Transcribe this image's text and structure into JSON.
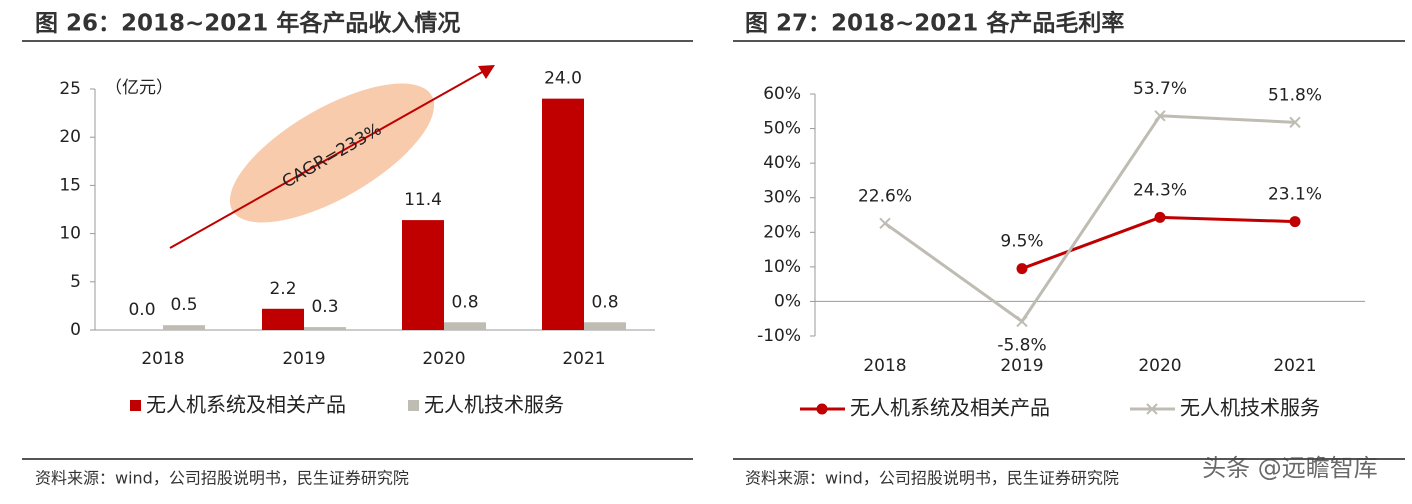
{
  "chart_data": [
    {
      "type": "bar",
      "title": "图 26：2018~2021 年各产品收入情况",
      "unit": "（亿元）",
      "annotation": "CAGR=233%",
      "categories": [
        "2018",
        "2019",
        "2020",
        "2021"
      ],
      "series": [
        {
          "name": "无人机系统及相关产品",
          "color": "#c00000",
          "values": [
            0.0,
            2.2,
            11.4,
            24.0
          ],
          "value_labels": [
            "0.0",
            "2.2",
            "11.4",
            "24.0"
          ]
        },
        {
          "name": "无人机技术服务",
          "color": "#bfbcb3",
          "values": [
            0.5,
            0.3,
            0.8,
            0.8
          ],
          "value_labels": [
            "0.5",
            "0.3",
            "0.8",
            "0.8"
          ]
        }
      ],
      "ylim": [
        0,
        25
      ],
      "yticks": [
        0,
        5,
        10,
        15,
        20,
        25
      ],
      "legend": "bottom",
      "source": "资料来源：wind，公司招股说明书，民生证券研究院"
    },
    {
      "type": "line",
      "title": "图 27：2018~2021 各产品毛利率",
      "categories": [
        "2018",
        "2019",
        "2020",
        "2021"
      ],
      "series": [
        {
          "name": "无人机系统及相关产品",
          "color": "#c00000",
          "marker": "circle",
          "values": [
            null,
            9.5,
            24.3,
            23.1
          ],
          "value_labels": [
            null,
            "9.5%",
            "24.3%",
            "23.1%"
          ]
        },
        {
          "name": "无人机技术服务",
          "color": "#bfbcb3",
          "marker": "x",
          "values": [
            22.6,
            -5.8,
            53.7,
            51.8
          ],
          "value_labels": [
            "22.6%",
            "-5.8%",
            "53.7%",
            "51.8%"
          ]
        }
      ],
      "ylim": [
        -10,
        60
      ],
      "yticks": [
        {
          "value": -10,
          "label": "-10%"
        },
        {
          "value": 0,
          "label": "0%"
        },
        {
          "value": 10,
          "label": "10%"
        },
        {
          "value": 20,
          "label": "20%"
        },
        {
          "value": 30,
          "label": "30%"
        },
        {
          "value": 40,
          "label": "40%"
        },
        {
          "value": 50,
          "label": "50%"
        },
        {
          "value": 60,
          "label": "60%"
        }
      ],
      "legend": "bottom",
      "source": "资料来源：wind，公司招股说明书，民生证券研究院"
    }
  ],
  "watermark": "头条 @远瞻智库"
}
